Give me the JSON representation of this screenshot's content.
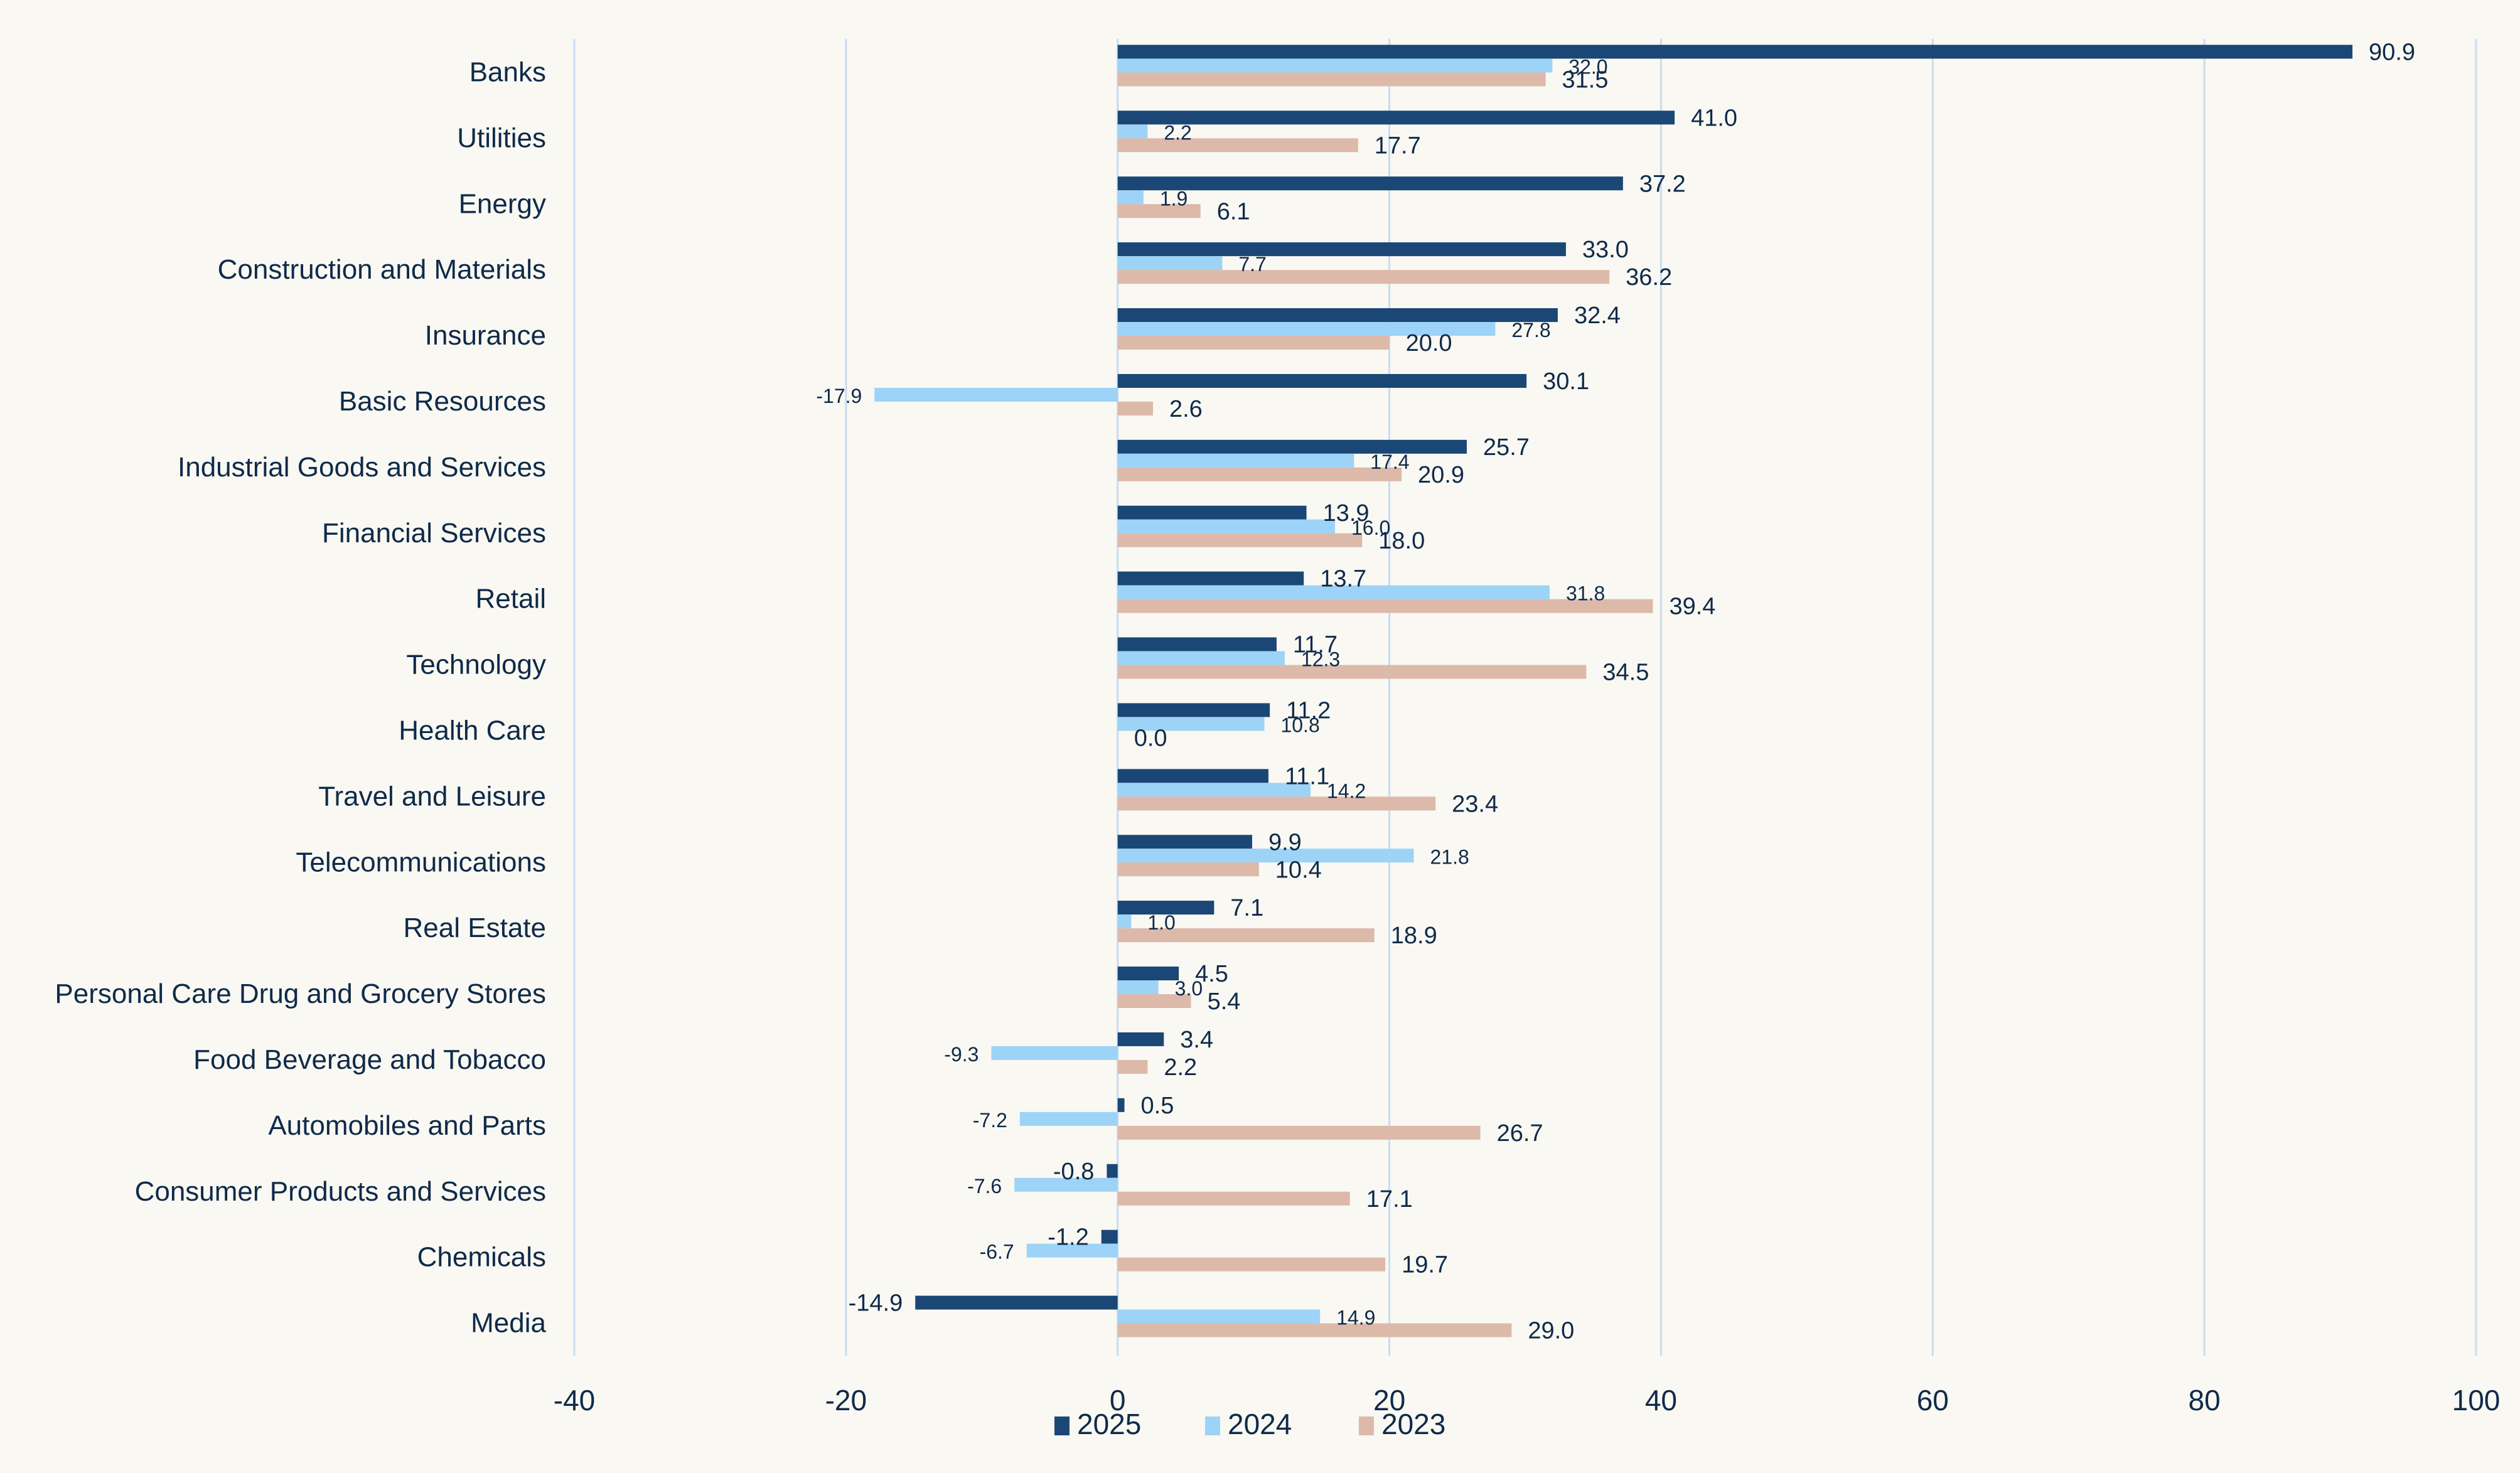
{
  "chart_data": {
    "type": "bar",
    "orientation": "horizontal",
    "title": "",
    "xlabel": "",
    "ylabel": "",
    "xlim": [
      -40,
      100
    ],
    "x_ticks": [
      -40,
      -20,
      0,
      20,
      40,
      60,
      80,
      100
    ],
    "x_tick_labels": [
      "-40",
      "-20",
      "0",
      "20",
      "40",
      "60",
      "80",
      "100"
    ],
    "grid": "vertical",
    "legend_position": "bottom",
    "categories": [
      "Banks",
      "Utilities",
      "Energy",
      "Construction and Materials",
      "Insurance",
      "Basic Resources",
      "Industrial Goods and Services",
      "Financial Services",
      "Retail",
      "Technology",
      "Health Care",
      "Travel and Leisure",
      "Telecommunications",
      "Real Estate",
      "Personal Care Drug and Grocery Stores",
      "Food Beverage and Tobacco",
      "Automobiles and Parts",
      "Consumer Products and Services",
      "Chemicals",
      "Media"
    ],
    "series": [
      {
        "name": "2025",
        "color": "#1a4776",
        "values": [
          90.9,
          41.0,
          37.2,
          33.0,
          32.4,
          30.1,
          25.7,
          13.9,
          13.7,
          11.7,
          11.2,
          11.1,
          9.9,
          7.1,
          4.5,
          3.4,
          0.5,
          -0.8,
          -1.2,
          -14.9
        ],
        "labels": [
          "90.9",
          "41.0",
          "37.2",
          "33.0",
          "32.4",
          "30.1",
          "25.7",
          "13.9",
          "13.7",
          "11.7",
          "11.2",
          "11.1",
          "9.9",
          "7.1",
          "4.5",
          "3.4",
          "0.5",
          "-0.8",
          "-1.2",
          "-14.9"
        ]
      },
      {
        "name": "2024",
        "color": "#9dd3f7",
        "values": [
          32.0,
          2.2,
          1.9,
          7.7,
          27.8,
          -17.9,
          17.4,
          16.0,
          31.8,
          12.3,
          10.8,
          14.2,
          21.8,
          1.0,
          3.0,
          -9.3,
          -7.2,
          -7.6,
          -6.7,
          14.9
        ],
        "labels": [
          "32.0",
          "2.2",
          "1.9",
          "7.7",
          "27.8",
          "-17.9",
          "17.4",
          "16.0",
          "31.8",
          "12.3",
          "10.8",
          "14.2",
          "21.8",
          "1.0",
          "3.0",
          "-9.3",
          "-7.2",
          "-7.6",
          "-6.7",
          "14.9"
        ]
      },
      {
        "name": "2023",
        "color": "#ddb9aa",
        "values": [
          31.5,
          17.7,
          6.1,
          36.2,
          20.0,
          2.6,
          20.9,
          18.0,
          39.4,
          34.5,
          0.0,
          23.4,
          10.4,
          18.9,
          5.4,
          2.2,
          26.7,
          17.1,
          19.7,
          29.0
        ],
        "labels": [
          "31.5",
          "17.7",
          "6.1",
          "36.2",
          "20.0",
          "2.6",
          "20.9",
          "18.0",
          "39.4",
          "34.5",
          "0.0",
          "23.4",
          "10.4",
          "18.9",
          "5.4",
          "2.2",
          "26.7",
          "17.1",
          "19.7",
          "29.0"
        ]
      }
    ]
  },
  "legend": {
    "items": [
      {
        "label": "2025",
        "color": "#1a4776"
      },
      {
        "label": "2024",
        "color": "#9dd3f7"
      },
      {
        "label": "2023",
        "color": "#ddb9aa"
      }
    ]
  },
  "colors": {
    "background": "#f9f8f2",
    "grid": "#c8dcf2",
    "text": "#0f2a4a"
  }
}
